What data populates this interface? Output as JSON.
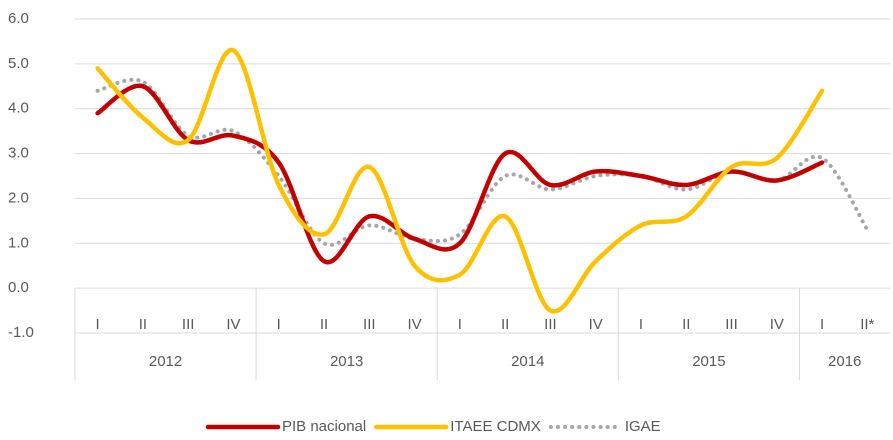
{
  "chart_data": {
    "type": "line",
    "categories": [
      "I",
      "II",
      "III",
      "IV",
      "I",
      "II",
      "III",
      "IV",
      "I",
      "II",
      "III",
      "IV",
      "I",
      "II",
      "III",
      "IV",
      "I",
      "II*"
    ],
    "years": [
      "2012",
      "2013",
      "2014",
      "2015",
      "2016"
    ],
    "series": [
      {
        "name": "PIB nacional",
        "color": "#c00000",
        "style": "solid",
        "values": [
          3.9,
          4.5,
          3.3,
          3.4,
          2.8,
          0.6,
          1.6,
          1.1,
          1.0,
          3.0,
          2.3,
          2.6,
          2.5,
          2.3,
          2.6,
          2.4,
          2.8,
          null
        ]
      },
      {
        "name": "ITAEE CDMX",
        "color": "#ffc000",
        "style": "solid",
        "values": [
          4.9,
          3.8,
          3.3,
          5.3,
          2.3,
          1.2,
          2.7,
          0.5,
          0.3,
          1.6,
          -0.5,
          0.6,
          1.4,
          1.6,
          2.7,
          2.9,
          4.4,
          null
        ]
      },
      {
        "name": "IGAE",
        "color": "#a6a6a6",
        "style": "dotted",
        "values": [
          4.4,
          4.6,
          3.4,
          3.5,
          2.5,
          1.0,
          1.4,
          1.1,
          1.2,
          2.5,
          2.2,
          2.5,
          2.5,
          2.2,
          2.6,
          2.4,
          2.9,
          1.3
        ]
      }
    ],
    "ylim": [
      -1,
      6
    ],
    "yticks": [
      {
        "value": -1,
        "label": "-1.0"
      },
      {
        "value": 0,
        "label": "0.0"
      },
      {
        "value": 1,
        "label": "1.0"
      },
      {
        "value": 2,
        "label": "2.0"
      },
      {
        "value": 3,
        "label": "3.0"
      },
      {
        "value": 4,
        "label": "4.0"
      },
      {
        "value": 5,
        "label": "5.0"
      },
      {
        "value": 6,
        "label": "6.0"
      }
    ],
    "grid": true
  }
}
